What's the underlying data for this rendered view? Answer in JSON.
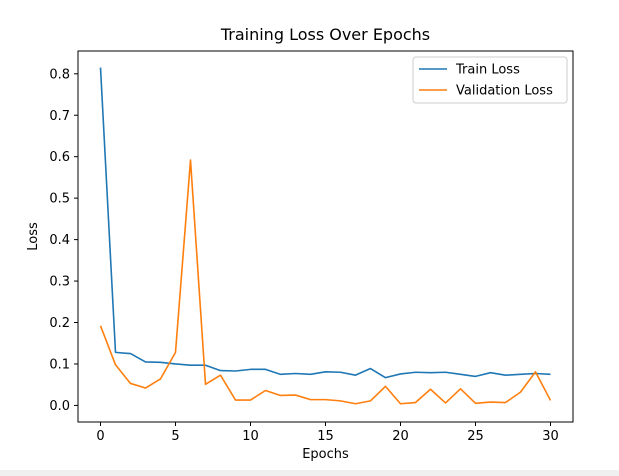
{
  "chart_data": {
    "type": "line",
    "title": "Training Loss Over Epochs",
    "xlabel": "Epochs",
    "ylabel": "Loss",
    "xlim": [
      -1.5,
      31.5
    ],
    "ylim": [
      -0.04,
      0.855
    ],
    "xticks": [
      0,
      5,
      10,
      15,
      20,
      25,
      30
    ],
    "yticks": [
      0.0,
      0.1,
      0.2,
      0.3,
      0.4,
      0.5,
      0.6,
      0.7,
      0.8
    ],
    "ytick_labels": [
      "0.0",
      "0.1",
      "0.2",
      "0.3",
      "0.4",
      "0.5",
      "0.6",
      "0.7",
      "0.8"
    ],
    "grid": false,
    "legend_position": "top-right",
    "x": [
      0,
      1,
      2,
      3,
      4,
      5,
      6,
      7,
      8,
      9,
      10,
      11,
      12,
      13,
      14,
      15,
      16,
      17,
      18,
      19,
      20,
      21,
      22,
      23,
      24,
      25,
      26,
      27,
      28,
      29,
      30
    ],
    "series": [
      {
        "name": "Train Loss",
        "color": "#1f77b4",
        "values": [
          0.815,
          0.128,
          0.125,
          0.105,
          0.104,
          0.1,
          0.097,
          0.097,
          0.084,
          0.083,
          0.087,
          0.087,
          0.075,
          0.077,
          0.075,
          0.081,
          0.08,
          0.073,
          0.089,
          0.067,
          0.076,
          0.08,
          0.079,
          0.08,
          0.075,
          0.07,
          0.079,
          0.073,
          0.075,
          0.077,
          0.075
        ]
      },
      {
        "name": "Validation Loss",
        "color": "#ff7f0e",
        "values": [
          0.192,
          0.098,
          0.053,
          0.042,
          0.064,
          0.128,
          0.592,
          0.051,
          0.073,
          0.013,
          0.013,
          0.036,
          0.024,
          0.025,
          0.014,
          0.014,
          0.011,
          0.004,
          0.011,
          0.046,
          0.004,
          0.007,
          0.039,
          0.006,
          0.04,
          0.005,
          0.008,
          0.007,
          0.032,
          0.081,
          0.012
        ]
      }
    ]
  }
}
